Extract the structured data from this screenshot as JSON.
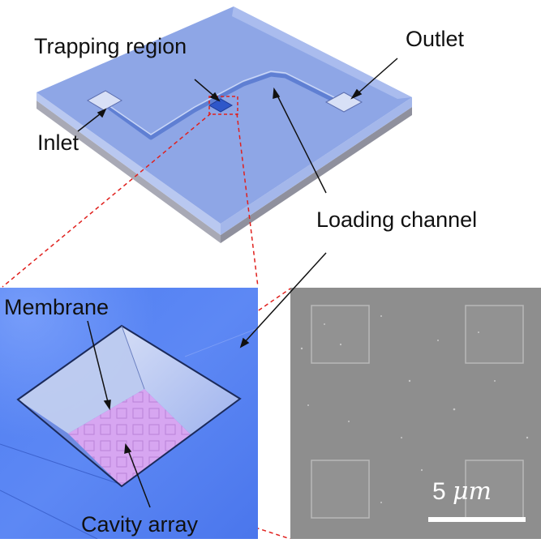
{
  "labels": {
    "trapping_region": "Trapping region",
    "outlet": "Outlet",
    "inlet": "Inlet",
    "loading_channel": "Loading channel",
    "membrane": "Membrane",
    "cavity_array": "Cavity array"
  },
  "scale_bar": {
    "value": "5",
    "unit": "μm"
  },
  "colors": {
    "chip_top": "#8ea6e6",
    "chip_layer": "#b9c8f0",
    "chip_base": "#a8a9b5",
    "closeup_bg": "#5a85f2",
    "membrane": "#d7a6f1",
    "sem_bg": "#8e8e8e",
    "zoom_line": "#e0201d"
  },
  "icons": {
    "sem_panel": "sem-micrograph",
    "closeup_panel": "pyramidal-well-render"
  }
}
